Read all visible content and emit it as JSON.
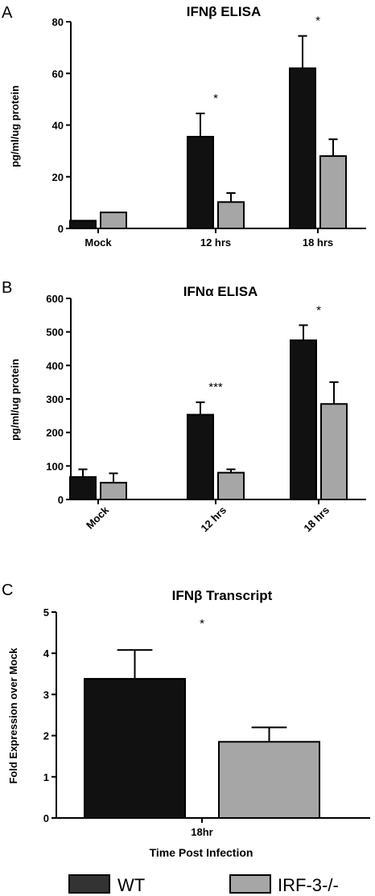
{
  "legend": [
    {
      "label": "WT",
      "color": "#111111"
    },
    {
      "label": "IRF-3-/-",
      "color": "#a6a6a6"
    }
  ],
  "chart_data": [
    {
      "panel": "A",
      "type": "bar",
      "title": "IFNβ ELISA",
      "ylabel": "pg/ml/ug protein",
      "xlabel": "",
      "ylim": [
        0,
        80
      ],
      "yticks": [
        0,
        20,
        40,
        60,
        80
      ],
      "categories": [
        "Mock",
        "12 hrs",
        "18 hrs"
      ],
      "rotated_labels": false,
      "series": [
        {
          "values": [
            3,
            35.5,
            62
          ],
          "errors": [
            0,
            9,
            12.5
          ]
        },
        {
          "values": [
            6.2,
            10.2,
            28
          ],
          "errors": [
            0,
            3.5,
            6.5
          ]
        }
      ],
      "annotations": [
        "",
        "*",
        "*"
      ]
    },
    {
      "panel": "B",
      "type": "bar",
      "title": "IFNα ELISA",
      "ylabel": "pg/ml/ug protein",
      "xlabel": "",
      "ylim": [
        0,
        600
      ],
      "yticks": [
        0,
        100,
        200,
        300,
        400,
        500,
        600
      ],
      "categories": [
        "Mock",
        "12 hrs",
        "18 hrs"
      ],
      "rotated_labels": true,
      "series": [
        {
          "values": [
            67,
            253,
            475
          ],
          "errors": [
            23,
            37,
            45
          ]
        },
        {
          "values": [
            50,
            80,
            285
          ],
          "errors": [
            28,
            10,
            65
          ]
        }
      ],
      "annotations": [
        "",
        "***",
        "*"
      ]
    },
    {
      "panel": "C",
      "type": "bar",
      "title": "IFNβ Transcript",
      "ylabel": "Fold Expression over Mock",
      "xlabel": "Time Post Infection",
      "ylim": [
        0,
        5
      ],
      "yticks": [
        0,
        1,
        2,
        3,
        4,
        5
      ],
      "categories": [
        "18hr"
      ],
      "rotated_labels": false,
      "series": [
        {
          "values": [
            3.38
          ],
          "errors": [
            0.7
          ]
        },
        {
          "values": [
            1.85
          ],
          "errors": [
            0.35
          ]
        }
      ],
      "annotations": [
        "*"
      ]
    }
  ]
}
